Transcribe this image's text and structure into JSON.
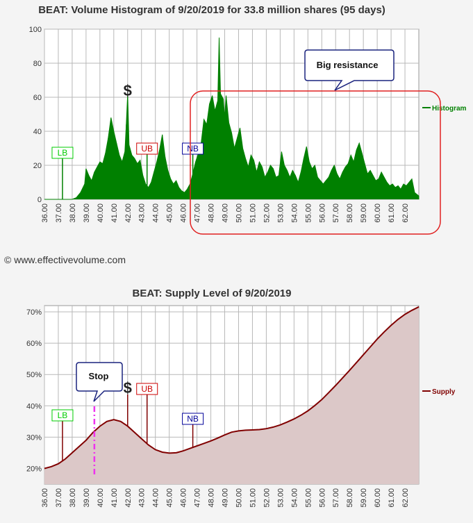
{
  "chart_data": [
    {
      "type": "area",
      "title": "BEAT: Volume Histogram of 9/20/2019 for 33.8 million shares (95 days)",
      "xlim": [
        36.0,
        63.0
      ],
      "ylim": [
        0,
        100
      ],
      "x_ticks": [
        "36.00",
        "37.00",
        "38.00",
        "39.00",
        "40.00",
        "41.00",
        "42.00",
        "43.00",
        "44.00",
        "45.00",
        "46.00",
        "47.00",
        "48.00",
        "49.00",
        "50.00",
        "51.00",
        "52.00",
        "53.00",
        "54.00",
        "55.00",
        "56.00",
        "57.00",
        "58.00",
        "59.00",
        "60.00",
        "61.00",
        "62.00"
      ],
      "y_ticks": [
        "0",
        "20",
        "40",
        "60",
        "80",
        "100"
      ],
      "grid": true,
      "legend": "right",
      "series": [
        {
          "name": "Histogram",
          "color": "#008000",
          "points": [
            [
              36.0,
              0
            ],
            [
              37.3,
              0
            ],
            [
              37.6,
              0
            ],
            [
              38.0,
              0
            ],
            [
              38.3,
              1
            ],
            [
              38.6,
              4
            ],
            [
              38.9,
              9
            ],
            [
              39.0,
              18
            ],
            [
              39.2,
              14
            ],
            [
              39.4,
              11
            ],
            [
              39.6,
              16
            ],
            [
              39.8,
              19
            ],
            [
              40.0,
              22
            ],
            [
              40.2,
              21
            ],
            [
              40.4,
              27
            ],
            [
              40.6,
              36
            ],
            [
              40.8,
              48
            ],
            [
              41.0,
              40
            ],
            [
              41.2,
              33
            ],
            [
              41.4,
              26
            ],
            [
              41.6,
              22
            ],
            [
              41.8,
              28
            ],
            [
              41.9,
              44
            ],
            [
              42.0,
              62
            ],
            [
              42.1,
              32
            ],
            [
              42.3,
              26
            ],
            [
              42.5,
              24
            ],
            [
              42.7,
              21
            ],
            [
              42.9,
              23
            ],
            [
              43.1,
              14
            ],
            [
              43.3,
              9
            ],
            [
              43.5,
              7
            ],
            [
              43.7,
              10
            ],
            [
              43.9,
              16
            ],
            [
              44.1,
              22
            ],
            [
              44.3,
              29
            ],
            [
              44.5,
              38
            ],
            [
              44.7,
              25
            ],
            [
              44.9,
              17
            ],
            [
              45.1,
              12
            ],
            [
              45.3,
              9
            ],
            [
              45.5,
              11
            ],
            [
              45.7,
              7
            ],
            [
              45.9,
              5
            ],
            [
              46.1,
              4
            ],
            [
              46.3,
              6
            ],
            [
              46.5,
              9
            ],
            [
              46.7,
              15
            ],
            [
              46.9,
              22
            ],
            [
              47.1,
              27
            ],
            [
              47.3,
              33
            ],
            [
              47.5,
              47
            ],
            [
              47.7,
              44
            ],
            [
              47.9,
              56
            ],
            [
              48.1,
              61
            ],
            [
              48.3,
              52
            ],
            [
              48.5,
              58
            ],
            [
              48.6,
              95
            ],
            [
              48.7,
              62
            ],
            [
              48.9,
              59
            ],
            [
              49.0,
              48
            ],
            [
              49.1,
              61
            ],
            [
              49.3,
              45
            ],
            [
              49.5,
              39
            ],
            [
              49.7,
              30
            ],
            [
              49.9,
              36
            ],
            [
              50.1,
              42
            ],
            [
              50.3,
              30
            ],
            [
              50.5,
              24
            ],
            [
              50.7,
              19
            ],
            [
              50.9,
              26
            ],
            [
              51.1,
              23
            ],
            [
              51.3,
              16
            ],
            [
              51.5,
              22
            ],
            [
              51.7,
              19
            ],
            [
              51.9,
              13
            ],
            [
              52.1,
              16
            ],
            [
              52.3,
              20
            ],
            [
              52.5,
              18
            ],
            [
              52.7,
              13
            ],
            [
              52.9,
              14
            ],
            [
              53.1,
              28
            ],
            [
              53.3,
              20
            ],
            [
              53.5,
              17
            ],
            [
              53.7,
              13
            ],
            [
              53.9,
              17
            ],
            [
              54.1,
              14
            ],
            [
              54.3,
              10
            ],
            [
              54.5,
              16
            ],
            [
              54.7,
              24
            ],
            [
              54.9,
              31
            ],
            [
              55.1,
              22
            ],
            [
              55.3,
              18
            ],
            [
              55.5,
              20
            ],
            [
              55.7,
              13
            ],
            [
              55.9,
              11
            ],
            [
              56.1,
              9
            ],
            [
              56.3,
              11
            ],
            [
              56.5,
              13
            ],
            [
              56.7,
              17
            ],
            [
              56.9,
              20
            ],
            [
              57.1,
              15
            ],
            [
              57.3,
              12
            ],
            [
              57.5,
              16
            ],
            [
              57.7,
              19
            ],
            [
              57.9,
              21
            ],
            [
              58.1,
              26
            ],
            [
              58.3,
              22
            ],
            [
              58.5,
              29
            ],
            [
              58.7,
              33
            ],
            [
              58.9,
              27
            ],
            [
              59.1,
              21
            ],
            [
              59.3,
              15
            ],
            [
              59.5,
              17
            ],
            [
              59.7,
              14
            ],
            [
              59.9,
              11
            ],
            [
              60.1,
              12
            ],
            [
              60.3,
              16
            ],
            [
              60.5,
              13
            ],
            [
              60.7,
              10
            ],
            [
              60.9,
              8
            ],
            [
              61.1,
              9
            ],
            [
              61.3,
              7
            ],
            [
              61.5,
              8
            ],
            [
              61.7,
              6
            ],
            [
              61.9,
              9
            ],
            [
              62.1,
              8
            ],
            [
              62.3,
              10
            ],
            [
              62.5,
              12
            ],
            [
              62.7,
              4
            ],
            [
              63.0,
              2
            ]
          ]
        }
      ],
      "markers": [
        {
          "label": "LB",
          "x": 37.3,
          "color": "#00cc00"
        },
        {
          "label": "UB",
          "x": 43.4,
          "color": "#cc0000"
        },
        {
          "label": "NB",
          "x": 46.7,
          "color": "#000099"
        }
      ],
      "price_marker": {
        "symbol": "$",
        "x": 42.0
      },
      "annotation": "Big resistance"
    },
    {
      "type": "area",
      "title": "BEAT: Supply Level of 9/20/2019",
      "xlim": [
        36.0,
        63.0
      ],
      "ylim": [
        15,
        72
      ],
      "x_ticks": [
        "36.00",
        "37.00",
        "38.00",
        "39.00",
        "40.00",
        "41.00",
        "42.00",
        "43.00",
        "44.00",
        "45.00",
        "46.00",
        "47.00",
        "48.00",
        "49.00",
        "50.00",
        "51.00",
        "52.00",
        "53.00",
        "54.00",
        "55.00",
        "56.00",
        "57.00",
        "58.00",
        "59.00",
        "60.00",
        "61.00",
        "62.00"
      ],
      "y_ticks": [
        "20%",
        "30%",
        "40%",
        "50%",
        "60%",
        "70%"
      ],
      "grid": true,
      "legend": "right",
      "series": [
        {
          "name": "Supply",
          "color": "#800000",
          "points": [
            [
              36.0,
              20.0
            ],
            [
              36.5,
              20.6
            ],
            [
              37.0,
              21.5
            ],
            [
              37.5,
              23.0
            ],
            [
              38.0,
              25.0
            ],
            [
              38.5,
              27.0
            ],
            [
              39.0,
              29.0
            ],
            [
              39.5,
              31.5
            ],
            [
              40.0,
              33.5
            ],
            [
              40.5,
              35.0
            ],
            [
              41.0,
              35.6
            ],
            [
              41.5,
              35.0
            ],
            [
              42.0,
              33.5
            ],
            [
              42.5,
              31.5
            ],
            [
              43.0,
              29.5
            ],
            [
              43.5,
              27.5
            ],
            [
              44.0,
              26.0
            ],
            [
              44.5,
              25.2
            ],
            [
              45.0,
              24.9
            ],
            [
              45.5,
              25.0
            ],
            [
              46.0,
              25.6
            ],
            [
              46.5,
              26.4
            ],
            [
              47.0,
              27.2
            ],
            [
              47.5,
              28.0
            ],
            [
              48.0,
              28.8
            ],
            [
              48.5,
              29.7
            ],
            [
              49.0,
              30.7
            ],
            [
              49.5,
              31.6
            ],
            [
              50.0,
              32.0
            ],
            [
              50.5,
              32.2
            ],
            [
              51.0,
              32.3
            ],
            [
              51.5,
              32.4
            ],
            [
              52.0,
              32.7
            ],
            [
              52.5,
              33.2
            ],
            [
              53.0,
              33.9
            ],
            [
              53.5,
              34.8
            ],
            [
              54.0,
              35.8
            ],
            [
              54.5,
              37.0
            ],
            [
              55.0,
              38.4
            ],
            [
              55.5,
              40.1
            ],
            [
              56.0,
              42.0
            ],
            [
              56.5,
              44.2
            ],
            [
              57.0,
              46.5
            ],
            [
              57.5,
              48.9
            ],
            [
              58.0,
              51.3
            ],
            [
              58.5,
              53.8
            ],
            [
              59.0,
              56.3
            ],
            [
              59.5,
              58.8
            ],
            [
              60.0,
              61.3
            ],
            [
              60.5,
              63.6
            ],
            [
              61.0,
              65.7
            ],
            [
              61.5,
              67.6
            ],
            [
              62.0,
              69.2
            ],
            [
              62.5,
              70.5
            ],
            [
              63.0,
              71.6
            ]
          ]
        }
      ],
      "markers": [
        {
          "label": "LB",
          "x": 37.3,
          "color": "#00cc00"
        },
        {
          "label": "UB",
          "x": 43.4,
          "color": "#cc0000"
        },
        {
          "label": "NB",
          "x": 46.7,
          "color": "#000099"
        }
      ],
      "price_marker": {
        "symbol": "$",
        "x": 42.0
      },
      "stop_x": 39.6,
      "annotation": "Stop"
    }
  ],
  "copyright": "© www.effectivevolume.com"
}
